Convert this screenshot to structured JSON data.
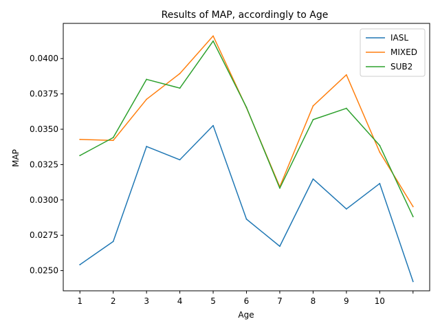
{
  "chart_data": {
    "type": "line",
    "title": "Results of MAP, accordingly to Age",
    "xlabel": "Age",
    "ylabel": "MAP",
    "x": [
      1,
      2,
      3,
      4,
      5,
      6,
      7,
      8,
      9,
      10,
      11
    ],
    "x_tick_values": [
      1,
      2,
      3,
      4,
      5,
      6,
      7,
      8,
      9,
      10,
      11
    ],
    "x_tick_labels": [
      "1",
      "2",
      "3",
      "4",
      "5",
      "6",
      "7",
      "8",
      "9",
      "10",
      ""
    ],
    "xlim": [
      0.5,
      11.5
    ],
    "ylim": [
      0.02357,
      0.04249
    ],
    "y_ticks": [
      0.025,
      0.0275,
      0.03,
      0.0325,
      0.035,
      0.0375,
      0.04
    ],
    "y_tick_labels": [
      "0.0250",
      "0.0275",
      "0.0300",
      "0.0325",
      "0.0350",
      "0.0375",
      "0.0400"
    ],
    "grid": false,
    "legend_position": "top-right",
    "series": [
      {
        "name": "IASL",
        "color": "#1f77b4",
        "values": [
          0.02542,
          0.02706,
          0.03378,
          0.03284,
          0.03526,
          0.02864,
          0.02672,
          0.03148,
          0.02936,
          0.03116,
          0.02423
        ]
      },
      {
        "name": "MIXED",
        "color": "#ff7f0e",
        "values": [
          0.03428,
          0.03421,
          0.03712,
          0.03894,
          0.0416,
          0.03652,
          0.03093,
          0.03665,
          0.03885,
          0.03338,
          0.02953
        ]
      },
      {
        "name": "SUB2",
        "color": "#2ca02c",
        "values": [
          0.03314,
          0.03441,
          0.03853,
          0.03791,
          0.04124,
          0.03655,
          0.03083,
          0.03568,
          0.03648,
          0.03385,
          0.02882
        ]
      }
    ]
  }
}
